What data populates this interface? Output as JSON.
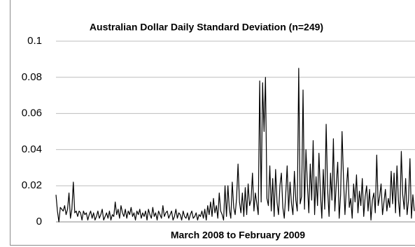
{
  "chart_data": {
    "type": "line",
    "title": "Australian Dollar Daily Standard Deviation (n=249)",
    "x_label": "March 2008 to February 2009",
    "color": "#000000",
    "grid": true,
    "ylim": [
      0,
      0.1
    ],
    "yticks": [
      0,
      0.02,
      0.04,
      0.06,
      0.08,
      0.1
    ],
    "values": [
      0.015,
      0.006,
      0,
      0.008,
      0.007,
      0.006,
      0.009,
      0.004,
      0.007,
      0.016,
      0.002,
      0.007,
      0.022,
      0.005,
      0.006,
      0.003,
      0.006,
      0.005,
      0.001,
      0.006,
      0.004,
      0.005,
      0.001,
      0.004,
      0.006,
      0.002,
      0.005,
      0.001,
      0.003,
      0.006,
      0.002,
      0.004,
      0.007,
      0.001,
      0.003,
      0.005,
      0.002,
      0.006,
      0.001,
      0.004,
      0.003,
      0.011,
      0.004,
      0.007,
      0.002,
      0.009,
      0.005,
      0.003,
      0.007,
      0.002,
      0.006,
      0.004,
      0.008,
      0.003,
      0.005,
      0.001,
      0.006,
      0.004,
      0.007,
      0.002,
      0.005,
      0.003,
      0.006,
      0.001,
      0.007,
      0.004,
      0.002,
      0.008,
      0.003,
      0.005,
      0.001,
      0.006,
      0.004,
      0.002,
      0.009,
      0.003,
      0.005,
      0.006,
      0.002,
      0.004,
      0.006,
      0.001,
      0.003,
      0.007,
      0.002,
      0.005,
      0.004,
      0.001,
      0.006,
      0.003,
      0.002,
      0.005,
      0.001,
      0.004,
      0.006,
      0.002,
      0.003,
      0.005,
      0.001,
      0.004,
      0.003,
      0.006,
      0.002,
      0.007,
      0.001,
      0.009,
      0.004,
      0.011,
      0.003,
      0.013,
      0.005,
      0.009,
      0.002,
      0.016,
      0.006,
      0.004,
      0.001,
      0.02,
      0.003,
      0.02,
      0.007,
      0.002,
      0.022,
      0.008,
      0.004,
      0.013,
      0.032,
      0.011,
      0.005,
      0.016,
      0.003,
      0.019,
      0.004,
      0.021,
      0.009,
      0.012,
      0.027,
      0.006,
      0.016,
      0.01,
      0.004,
      0.078,
      0.011,
      0.077,
      0.05,
      0.08,
      0.013,
      0.009,
      0.031,
      0.006,
      0.024,
      0.003,
      0.029,
      0.011,
      0.004,
      0.02,
      0.027,
      0.008,
      0.002,
      0.015,
      0.031,
      0.006,
      0.022,
      0.01,
      0.004,
      0.028,
      0.012,
      0.006,
      0.085,
      0.01,
      0.014,
      0.073,
      0.007,
      0.04,
      0.021,
      0.005,
      0.032,
      0.012,
      0.045,
      0.004,
      0.025,
      0.009,
      0.038,
      0.016,
      0.002,
      0.029,
      0.007,
      0.054,
      0.018,
      0.003,
      0.027,
      0.012,
      0.046,
      0.006,
      0.021,
      0.033,
      0.002,
      0.015,
      0.05,
      0.024,
      0.004,
      0.019,
      0.03,
      0.008,
      0.013,
      0.002,
      0.021,
      0.011,
      0.026,
      0.005,
      0.017,
      0.009,
      0.024,
      0.003,
      0.014,
      0.02,
      0.006,
      0.018,
      0.001,
      0.012,
      0.016,
      0.005,
      0.037,
      0.009,
      0.014,
      0.021,
      0.004,
      0.011,
      0.018,
      0.006,
      0.013,
      0.008,
      0.028,
      0.01,
      0.027,
      0.005,
      0.031,
      0.012,
      0.003,
      0.039,
      0.015,
      0.007,
      0.024,
      0.004,
      0.012,
      0.035,
      0.002,
      0.015,
      0.006
    ]
  }
}
